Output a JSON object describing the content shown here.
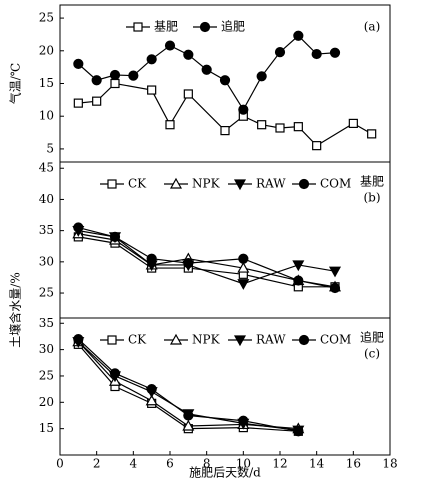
{
  "chart_data": [
    {
      "type": "line",
      "panel_label": "(a)",
      "ylabel": "气温/℃",
      "xlim": [
        0,
        18
      ],
      "ylim": [
        3,
        27
      ],
      "yticks": [
        5,
        10,
        15,
        20,
        25
      ],
      "series": [
        {
          "name": "基肥",
          "color": "#000000",
          "marker": "square",
          "filled": false,
          "x": [
            1,
            2,
            3,
            5,
            6,
            7,
            9,
            10,
            11,
            12,
            13,
            14,
            16,
            17
          ],
          "values": [
            12,
            12.3,
            15,
            14,
            8.7,
            13.4,
            7.8,
            10,
            8.7,
            8.2,
            8.4,
            5.5,
            8.9,
            7.3
          ]
        },
        {
          "name": "追肥",
          "color": "#000000",
          "marker": "circle",
          "filled": true,
          "x": [
            1,
            2,
            3,
            4,
            5,
            6,
            7,
            8,
            9,
            10,
            11,
            12,
            13,
            14,
            15
          ],
          "values": [
            18,
            15.5,
            16.3,
            16.2,
            18.7,
            20.8,
            19.4,
            17.1,
            15.5,
            11,
            16.1,
            19.8,
            22.3,
            19.5,
            19.7
          ]
        }
      ]
    },
    {
      "type": "line",
      "panel_label": "(b)",
      "note": "基肥",
      "ylabel": "土壤含水量/%",
      "xlim": [
        0,
        18
      ],
      "ylim": [
        21,
        46
      ],
      "yticks": [
        25,
        30,
        35,
        40,
        45
      ],
      "series": [
        {
          "name": "CK",
          "color": "#000000",
          "marker": "square",
          "filled": false,
          "x": [
            1,
            3,
            5,
            7,
            10,
            13,
            15
          ],
          "values": [
            34,
            33,
            29,
            29,
            28,
            26,
            26
          ]
        },
        {
          "name": "NPK",
          "color": "#000000",
          "marker": "triangle",
          "filled": false,
          "x": [
            1,
            3,
            5,
            7,
            10,
            13,
            15
          ],
          "values": [
            34.5,
            33.5,
            29.5,
            30.5,
            29,
            27,
            26
          ]
        },
        {
          "name": "RAW",
          "color": "#000000",
          "marker": "triangle-down",
          "filled": true,
          "x": [
            1,
            3,
            5,
            7,
            10,
            13,
            15
          ],
          "values": [
            35,
            34,
            29.5,
            29.5,
            26.5,
            29.5,
            28.5
          ]
        },
        {
          "name": "COM",
          "color": "#000000",
          "marker": "circle",
          "filled": true,
          "x": [
            1,
            3,
            5,
            7,
            10,
            13,
            15
          ],
          "values": [
            35.5,
            34,
            30.5,
            29.8,
            30.5,
            27,
            25.8
          ]
        }
      ]
    },
    {
      "type": "line",
      "panel_label": "(c)",
      "note": "追肥",
      "xlabel": "施肥后天数/d",
      "xlim": [
        0,
        18
      ],
      "xticks": [
        0,
        2,
        4,
        6,
        8,
        10,
        12,
        14,
        16,
        18
      ],
      "ylim": [
        10,
        36
      ],
      "yticks": [
        15,
        20,
        25,
        30,
        35
      ],
      "series": [
        {
          "name": "CK",
          "color": "#000000",
          "marker": "square",
          "filled": false,
          "x": [
            1,
            3,
            5,
            7,
            10,
            13
          ],
          "values": [
            31,
            23,
            19.8,
            15,
            15.2,
            14.5
          ]
        },
        {
          "name": "NPK",
          "color": "#000000",
          "marker": "triangle",
          "filled": false,
          "x": [
            1,
            3,
            5,
            7,
            10,
            13
          ],
          "values": [
            31.5,
            24,
            20.3,
            15.5,
            15.8,
            15
          ]
        },
        {
          "name": "RAW",
          "color": "#000000",
          "marker": "triangle-down",
          "filled": true,
          "x": [
            1,
            3,
            5,
            7,
            10,
            13
          ],
          "values": [
            31.5,
            25,
            22,
            17.8,
            16,
            14.7
          ]
        },
        {
          "name": "COM",
          "color": "#000000",
          "marker": "circle",
          "filled": true,
          "x": [
            1,
            3,
            5,
            7,
            10,
            13
          ],
          "values": [
            32,
            25.5,
            22.5,
            17.5,
            16.5,
            14.5
          ]
        }
      ]
    }
  ]
}
